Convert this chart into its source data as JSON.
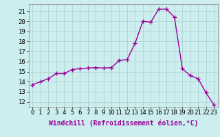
{
  "x": [
    0,
    1,
    2,
    3,
    4,
    5,
    6,
    7,
    8,
    9,
    10,
    11,
    12,
    13,
    14,
    15,
    16,
    17,
    18,
    19,
    20,
    21,
    22,
    23
  ],
  "y": [
    13.7,
    14.0,
    14.3,
    14.8,
    14.8,
    15.2,
    15.3,
    15.35,
    15.4,
    15.35,
    15.4,
    16.1,
    16.2,
    17.8,
    20.0,
    19.9,
    21.2,
    21.2,
    20.4,
    15.3,
    14.6,
    14.3,
    12.9,
    11.7
  ],
  "line_color": "#990099",
  "marker": "+",
  "markersize": 4,
  "linewidth": 1.0,
  "background_color": "#cceeee",
  "grid_color": "#aacccc",
  "xlabel": "Windchill (Refroidissement éolien,°C)",
  "xlabel_fontsize": 7,
  "ylabel_ticks": [
    12,
    13,
    14,
    15,
    16,
    17,
    18,
    19,
    20,
    21
  ],
  "xlim": [
    -0.5,
    23.5
  ],
  "ylim": [
    11.5,
    21.7
  ],
  "xtick_labels": [
    "0",
    "1",
    "2",
    "3",
    "4",
    "5",
    "6",
    "7",
    "8",
    "9",
    "10",
    "11",
    "12",
    "13",
    "14",
    "15",
    "16",
    "17",
    "18",
    "19",
    "20",
    "21",
    "22",
    "23"
  ],
  "tick_fontsize": 6.5
}
